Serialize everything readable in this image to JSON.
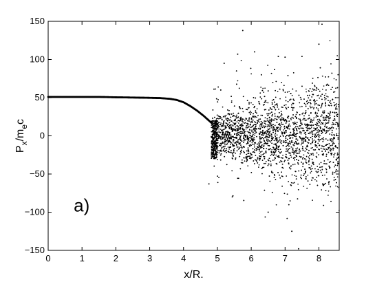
{
  "chart_data": {
    "type": "scatter",
    "title": "",
    "xlabel": "x/R.",
    "ylabel_main": "P",
    "ylabel_sub1": "x",
    "ylabel_mid": "/m",
    "ylabel_sub2": "e",
    "ylabel_end": "c",
    "annotation": "a)",
    "annotation_position": [
      1.0,
      -90
    ],
    "xlim": [
      0,
      8.6
    ],
    "ylim": [
      -150,
      150
    ],
    "x_ticks": [
      0,
      1,
      2,
      3,
      4,
      5,
      6,
      7,
      8
    ],
    "y_ticks": [
      -150,
      -100,
      -50,
      0,
      50,
      100,
      150
    ],
    "x_tick_labels": [
      "0",
      "1",
      "2",
      "3",
      "4",
      "5",
      "6",
      "7",
      "8"
    ],
    "y_tick_labels": [
      "−150",
      "−100",
      "−50",
      "0",
      "50",
      "100",
      "150"
    ],
    "grid": false,
    "marker_color": "#000000",
    "curve_points": [
      [
        0.0,
        51
      ],
      [
        0.5,
        51
      ],
      [
        1.0,
        51
      ],
      [
        1.5,
        51
      ],
      [
        2.0,
        50.5
      ],
      [
        2.5,
        50.2
      ],
      [
        3.0,
        49.8
      ],
      [
        3.3,
        49.5
      ],
      [
        3.6,
        48.5
      ],
      [
        3.8,
        47
      ],
      [
        4.0,
        44
      ],
      [
        4.2,
        39
      ],
      [
        4.4,
        33
      ],
      [
        4.6,
        26
      ],
      [
        4.75,
        20
      ],
      [
        4.85,
        16
      ]
    ],
    "outlier_points": [
      [
        5.75,
        138
      ],
      [
        6.1,
        110
      ],
      [
        5.6,
        107
      ],
      [
        6.8,
        104
      ],
      [
        7.0,
        103
      ],
      [
        7.5,
        104
      ],
      [
        8.0,
        120
      ],
      [
        7.2,
        -125
      ],
      [
        7.4,
        -148
      ],
      [
        6.5,
        -100
      ],
      [
        8.3,
        -60
      ],
      [
        4.75,
        -63
      ],
      [
        5.2,
        95
      ],
      [
        6.3,
        80
      ],
      [
        5.1,
        60
      ]
    ]
  }
}
